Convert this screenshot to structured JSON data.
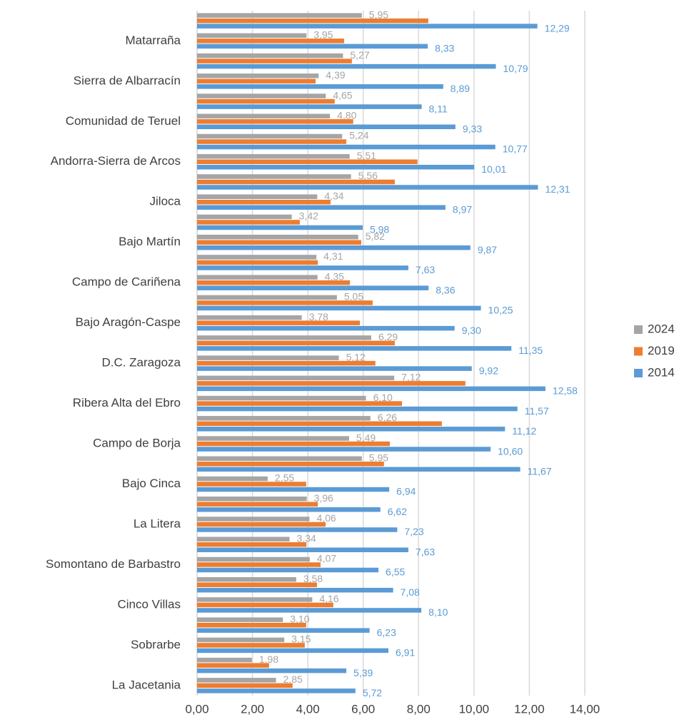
{
  "chart_data": {
    "type": "hbar",
    "categories": [
      null,
      "Matarraña",
      null,
      "Sierra de Albarracín",
      null,
      "Comunidad de Teruel",
      null,
      "Andorra-Sierra de Arcos",
      null,
      "Jiloca",
      null,
      "Bajo Martín",
      null,
      "Campo de Cariñena",
      null,
      "Bajo Aragón-Caspe",
      null,
      "D.C. Zaragoza",
      null,
      "Ribera Alta del Ebro",
      null,
      "Campo de Borja",
      null,
      "Bajo Cinca",
      null,
      "La Litera",
      null,
      "Somontano de Barbastro",
      null,
      "Cinco Villas",
      null,
      "Sobrarbe",
      null,
      "La Jacetania"
    ],
    "series": [
      {
        "name": "2024",
        "color": "#a5a5a5",
        "values": [
          5.95,
          3.95,
          5.27,
          4.39,
          4.65,
          4.8,
          5.24,
          5.51,
          5.56,
          4.34,
          3.42,
          5.82,
          4.31,
          4.35,
          5.05,
          3.78,
          6.29,
          5.12,
          7.12,
          6.1,
          6.26,
          5.49,
          5.95,
          2.55,
          3.96,
          4.06,
          3.34,
          4.07,
          3.58,
          4.16,
          3.1,
          3.15,
          1.98,
          2.85
        ],
        "value_labels": [
          "5,95",
          "3,95",
          "5,27",
          "4,39",
          "4,65",
          "4,80",
          "5,24",
          "5,51",
          "5,56",
          "4,34",
          "3,42",
          "5,82",
          "4,31",
          "4,35",
          "5,05",
          "3,78",
          "6,29",
          "5,12",
          "7,12",
          "6,10",
          "6,26",
          "5,49",
          "5,95",
          "2,55",
          "3,96",
          "4,06",
          "3,34",
          "4,07",
          "3,58",
          "4,16",
          "3,10",
          "3,15",
          "1,98",
          "2,85"
        ]
      },
      {
        "name": "2019",
        "color": "#ed7d31",
        "values": [
          8.35,
          5.31,
          5.59,
          4.28,
          4.97,
          5.64,
          5.39,
          7.96,
          7.14,
          4.82,
          3.71,
          5.93,
          4.36,
          5.52,
          6.34,
          5.88,
          7.14,
          6.44,
          9.69,
          7.4,
          8.84,
          6.96,
          6.75,
          3.94,
          4.36,
          4.64,
          3.95,
          4.46,
          4.33,
          4.92,
          3.94,
          3.89,
          2.6,
          3.45
        ]
      },
      {
        "name": "2014",
        "color": "#5b9bd5",
        "values": [
          12.29,
          8.33,
          10.79,
          8.89,
          8.11,
          9.33,
          10.77,
          10.01,
          12.31,
          8.97,
          5.98,
          9.87,
          7.63,
          8.36,
          10.25,
          9.3,
          11.35,
          9.92,
          12.58,
          11.57,
          11.12,
          10.6,
          11.67,
          6.94,
          6.62,
          7.23,
          7.63,
          6.55,
          7.08,
          8.1,
          6.23,
          6.91,
          5.39,
          5.72
        ],
        "value_labels": [
          "12,29",
          "8,33",
          "10,79",
          "8,89",
          "8,11",
          "9,33",
          "10,77",
          "10,01",
          "12,31",
          "8,97",
          "5,98",
          "9,87",
          "7,63",
          "8,36",
          "10,25",
          "9,30",
          "11,35",
          "9,92",
          "12,58",
          "11,57",
          "11,12",
          "10,60",
          "11,67",
          "6,94",
          "6,62",
          "7,23",
          "7,63",
          "6,55",
          "7,08",
          "8,10",
          "6,23",
          "6,91",
          "5,39",
          "5,72"
        ]
      }
    ],
    "xlim": [
      0,
      14
    ],
    "xticks": [
      {
        "value": 0,
        "label": "0,00"
      },
      {
        "value": 2,
        "label": "2,00"
      },
      {
        "value": 4,
        "label": "4,00"
      },
      {
        "value": 6,
        "label": "6,00"
      },
      {
        "value": 8,
        "label": "8,00"
      },
      {
        "value": 10,
        "label": "10,00"
      },
      {
        "value": 12,
        "label": "12,00"
      },
      {
        "value": 14,
        "label": "14,00"
      }
    ],
    "grid": true,
    "legend": "right"
  }
}
